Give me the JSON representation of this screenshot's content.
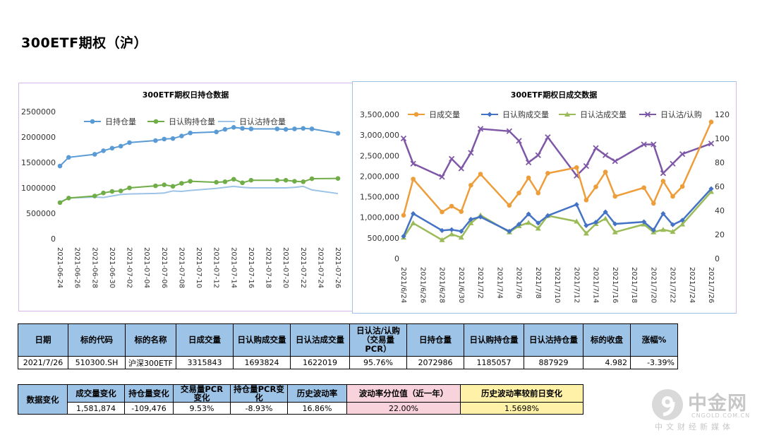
{
  "page": {
    "title": "300ETF期权（沪）"
  },
  "chart_data": [
    {
      "type": "line",
      "title": "300ETF期权日持仓数据",
      "x_tick_labels": [
        "2021-06-24",
        "2021-06-26",
        "2021-06-28",
        "2021-06-30",
        "2021-07-02",
        "2021-07-04",
        "2021-07-06",
        "2021-07-08",
        "2021-07-10",
        "2021-07-12",
        "2021-07-14",
        "2021-07-16",
        "2021-07-18",
        "2021-07-20",
        "2021-07-22",
        "2021-07-24",
        "2021-07-26"
      ],
      "y_tick_labels": [
        "0",
        "500000",
        "1000000",
        "1500000",
        "2000000",
        "2500000"
      ],
      "ylim": [
        0,
        2500000
      ],
      "legend_position": "top",
      "series": [
        {
          "name": "日持仓量",
          "color": "#5b9bd5",
          "points": [
            [
              "2021-06-24",
              1430000
            ],
            [
              "2021-06-25",
              1600000
            ],
            [
              "2021-06-28",
              1660000
            ],
            [
              "2021-06-29",
              1730000
            ],
            [
              "2021-06-30",
              1780000
            ],
            [
              "2021-07-01",
              1820000
            ],
            [
              "2021-07-02",
              1890000
            ],
            [
              "2021-07-05",
              1930000
            ],
            [
              "2021-07-06",
              1960000
            ],
            [
              "2021-07-07",
              1970000
            ],
            [
              "2021-07-08",
              2020000
            ],
            [
              "2021-07-09",
              2080000
            ],
            [
              "2021-07-12",
              2100000
            ],
            [
              "2021-07-13",
              2150000
            ],
            [
              "2021-07-14",
              2190000
            ],
            [
              "2021-07-15",
              2170000
            ],
            [
              "2021-07-16",
              2160000
            ],
            [
              "2021-07-19",
              2160000
            ],
            [
              "2021-07-20",
              2150000
            ],
            [
              "2021-07-21",
              2160000
            ],
            [
              "2021-07-22",
              2170000
            ],
            [
              "2021-07-23",
              2160000
            ],
            [
              "2021-07-26",
              2072986
            ]
          ]
        },
        {
          "name": "日认购持仓量",
          "color": "#70ad47",
          "points": [
            [
              "2021-06-24",
              710000
            ],
            [
              "2021-06-25",
              800000
            ],
            [
              "2021-06-28",
              840000
            ],
            [
              "2021-06-29",
              900000
            ],
            [
              "2021-06-30",
              930000
            ],
            [
              "2021-07-01",
              940000
            ],
            [
              "2021-07-02",
              1000000
            ],
            [
              "2021-07-05",
              1040000
            ],
            [
              "2021-07-06",
              1060000
            ],
            [
              "2021-07-07",
              1030000
            ],
            [
              "2021-07-08",
              1090000
            ],
            [
              "2021-07-09",
              1130000
            ],
            [
              "2021-07-12",
              1110000
            ],
            [
              "2021-07-13",
              1120000
            ],
            [
              "2021-07-14",
              1170000
            ],
            [
              "2021-07-15",
              1100000
            ],
            [
              "2021-07-16",
              1150000
            ],
            [
              "2021-07-19",
              1150000
            ],
            [
              "2021-07-20",
              1150000
            ],
            [
              "2021-07-21",
              1130000
            ],
            [
              "2021-07-22",
              1120000
            ],
            [
              "2021-07-23",
              1180000
            ],
            [
              "2021-07-26",
              1185057
            ]
          ]
        },
        {
          "name": "日认沽持仓量",
          "color": "#9dc3e6",
          "points": [
            [
              "2021-06-24",
              720000
            ],
            [
              "2021-06-25",
              800000
            ],
            [
              "2021-06-28",
              820000
            ],
            [
              "2021-06-29",
              810000
            ],
            [
              "2021-06-30",
              840000
            ],
            [
              "2021-07-01",
              870000
            ],
            [
              "2021-07-02",
              880000
            ],
            [
              "2021-07-05",
              890000
            ],
            [
              "2021-07-06",
              900000
            ],
            [
              "2021-07-07",
              940000
            ],
            [
              "2021-07-08",
              930000
            ],
            [
              "2021-07-09",
              950000
            ],
            [
              "2021-07-12",
              990000
            ],
            [
              "2021-07-13",
              1010000
            ],
            [
              "2021-07-14",
              1030000
            ],
            [
              "2021-07-15",
              1010000
            ],
            [
              "2021-07-16",
              1000000
            ],
            [
              "2021-07-19",
              1000000
            ],
            [
              "2021-07-20",
              1000000
            ],
            [
              "2021-07-21",
              1010000
            ],
            [
              "2021-07-22",
              1030000
            ],
            [
              "2021-07-23",
              960000
            ],
            [
              "2021-07-26",
              887929
            ]
          ]
        }
      ]
    },
    {
      "type": "line",
      "title": "300ETF期权日成交数据",
      "x_tick_labels": [
        "2021/6/24",
        "2021/6/26",
        "2021/6/28",
        "2021/6/30",
        "2021/7/2",
        "2021/7/4",
        "2021/7/6",
        "2021/7/8",
        "2021/7/10",
        "2021/7/12",
        "2021/7/14",
        "2021/7/16",
        "2021/7/18",
        "2021/7/20",
        "2021/7/22",
        "2021/7/24",
        "2021/7/26"
      ],
      "y_left_tick_labels": [
        "0",
        "500,000",
        "1,000,000",
        "1,500,000",
        "2,000,000",
        "2,500,000",
        "3,000,000",
        "3,500,000"
      ],
      "y_right_tick_labels": [
        "0",
        "20",
        "40",
        "60",
        "80",
        "100",
        "120"
      ],
      "ylim_left": [
        0,
        3500000
      ],
      "ylim_right": [
        0,
        120
      ],
      "legend_position": "top",
      "series": [
        {
          "name": "日成交量",
          "color": "#ed9d3a",
          "axis": "left",
          "points": [
            [
              "2021-06-24",
              1050000
            ],
            [
              "2021-06-25",
              1930000
            ],
            [
              "2021-06-28",
              1130000
            ],
            [
              "2021-06-29",
              1270000
            ],
            [
              "2021-06-30",
              1140000
            ],
            [
              "2021-07-01",
              1780000
            ],
            [
              "2021-07-02",
              2050000
            ],
            [
              "2021-07-05",
              1290000
            ],
            [
              "2021-07-06",
              1590000
            ],
            [
              "2021-07-07",
              1960000
            ],
            [
              "2021-07-08",
              1590000
            ],
            [
              "2021-07-09",
              2070000
            ],
            [
              "2021-07-12",
              2210000
            ],
            [
              "2021-07-13",
              1420000
            ],
            [
              "2021-07-14",
              1740000
            ],
            [
              "2021-07-15",
              2100000
            ],
            [
              "2021-07-16",
              1510000
            ],
            [
              "2021-07-19",
              1720000
            ],
            [
              "2021-07-20",
              1340000
            ],
            [
              "2021-07-21",
              1880000
            ],
            [
              "2021-07-22",
              1510000
            ],
            [
              "2021-07-23",
              1750000
            ],
            [
              "2021-07-26",
              3315843
            ]
          ]
        },
        {
          "name": "日认购成交量",
          "color": "#4472c4",
          "axis": "left",
          "points": [
            [
              "2021-06-24",
              540000
            ],
            [
              "2021-06-25",
              1090000
            ],
            [
              "2021-06-28",
              680000
            ],
            [
              "2021-06-29",
              700000
            ],
            [
              "2021-06-30",
              660000
            ],
            [
              "2021-07-01",
              950000
            ],
            [
              "2021-07-02",
              1010000
            ],
            [
              "2021-07-05",
              660000
            ],
            [
              "2021-07-06",
              830000
            ],
            [
              "2021-07-07",
              1080000
            ],
            [
              "2021-07-08",
              860000
            ],
            [
              "2021-07-09",
              1040000
            ],
            [
              "2021-07-12",
              1310000
            ],
            [
              "2021-07-13",
              800000
            ],
            [
              "2021-07-14",
              880000
            ],
            [
              "2021-07-15",
              1130000
            ],
            [
              "2021-07-16",
              840000
            ],
            [
              "2021-07-19",
              890000
            ],
            [
              "2021-07-20",
              690000
            ],
            [
              "2021-07-21",
              1090000
            ],
            [
              "2021-07-22",
              820000
            ],
            [
              "2021-07-23",
              930000
            ],
            [
              "2021-07-26",
              1693824
            ]
          ]
        },
        {
          "name": "日认沽成交量",
          "color": "#9bbb59",
          "axis": "left",
          "points": [
            [
              "2021-06-24",
              510000
            ],
            [
              "2021-06-25",
              860000
            ],
            [
              "2021-06-28",
              450000
            ],
            [
              "2021-06-29",
              590000
            ],
            [
              "2021-06-30",
              510000
            ],
            [
              "2021-07-01",
              860000
            ],
            [
              "2021-07-02",
              1050000
            ],
            [
              "2021-07-05",
              640000
            ],
            [
              "2021-07-06",
              790000
            ],
            [
              "2021-07-07",
              870000
            ],
            [
              "2021-07-08",
              730000
            ],
            [
              "2021-07-09",
              1040000
            ],
            [
              "2021-07-12",
              900000
            ],
            [
              "2021-07-13",
              610000
            ],
            [
              "2021-07-14",
              840000
            ],
            [
              "2021-07-15",
              970000
            ],
            [
              "2021-07-16",
              640000
            ],
            [
              "2021-07-19",
              830000
            ],
            [
              "2021-07-20",
              640000
            ],
            [
              "2021-07-21",
              700000
            ],
            [
              "2021-07-22",
              650000
            ],
            [
              "2021-07-23",
              830000
            ],
            [
              "2021-07-26",
              1622019
            ]
          ]
        },
        {
          "name": "日认沽/认购",
          "color": "#7e57a7",
          "axis": "right",
          "points": [
            [
              "2021-06-24",
              100
            ],
            [
              "2021-06-25",
              79
            ],
            [
              "2021-06-28",
              68
            ],
            [
              "2021-06-29",
              83
            ],
            [
              "2021-06-30",
              75
            ],
            [
              "2021-07-01",
              88
            ],
            [
              "2021-07-02",
              108
            ],
            [
              "2021-07-05",
              106
            ],
            [
              "2021-07-06",
              98
            ],
            [
              "2021-07-07",
              80
            ],
            [
              "2021-07-08",
              86
            ],
            [
              "2021-07-09",
              101
            ],
            [
              "2021-07-12",
              69
            ],
            [
              "2021-07-13",
              77
            ],
            [
              "2021-07-14",
              92
            ],
            [
              "2021-07-15",
              86
            ],
            [
              "2021-07-16",
              81
            ],
            [
              "2021-07-19",
              95
            ],
            [
              "2021-07-20",
              95
            ],
            [
              "2021-07-21",
              71
            ],
            [
              "2021-07-22",
              79
            ],
            [
              "2021-07-23",
              87
            ],
            [
              "2021-07-26",
              95.76
            ]
          ]
        }
      ]
    }
  ],
  "table1": {
    "headers": [
      "日期",
      "标的代码",
      "标的名称",
      "日成交量",
      "日认购成交量",
      "日认沽成交量",
      "日认沽/认购\n（交易量\nPCR）",
      "日持仓量",
      "日认购持仓量",
      "日认沽持仓量",
      "标的收盘",
      "涨幅%"
    ],
    "row": [
      "2021/7/26",
      "510300.SH",
      "沪深300ETF",
      "3315843",
      "1693824",
      "1622019",
      "95.76%",
      "2072986",
      "1185057",
      "887929",
      "4.982",
      "-3.39%"
    ]
  },
  "table2": {
    "label": "数据变化",
    "headers": [
      "成交量变化",
      "持仓量变化",
      "交易量PCR\n变化",
      "持仓量PCR变\n化",
      "历史波动率",
      "波动率分位值（近一年）",
      "历史波动率较前日变化"
    ],
    "row": [
      "1,581,874",
      "-109,476",
      "9.53%",
      "-8.93%",
      "16.86%",
      "22.00%",
      "1.5698%"
    ]
  },
  "watermark": {
    "name": "中金网",
    "domain": "CNGOLD.COM.CN",
    "tagline": "中文财经新媒体",
    "logo_color": "#d9d9d9"
  }
}
